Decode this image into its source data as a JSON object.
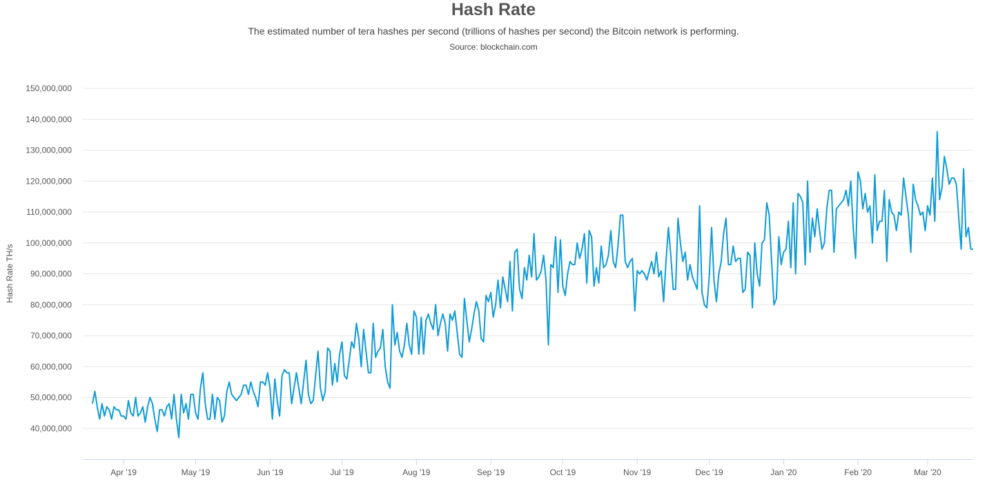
{
  "chart_data": {
    "type": "line",
    "title": "Hash Rate",
    "subtitle": "The estimated number of tera hashes per second (trillions of hashes per second) the Bitcoin network is performing.",
    "source": "Source: blockchain.com",
    "ylabel": "Hash Rate TH/s",
    "xlabel": "",
    "line_color": "#0f9bd7",
    "grid_color": "#e6e6e6",
    "ylim": [
      30000000,
      150000000
    ],
    "y_ticks": [
      40000000,
      50000000,
      60000000,
      70000000,
      80000000,
      90000000,
      100000000,
      110000000,
      120000000,
      130000000,
      140000000,
      150000000
    ],
    "y_tick_labels": [
      "40,000,000",
      "50,000,000",
      "60,000,000",
      "70,000,000",
      "80,000,000",
      "90,000,000",
      "100,000,000",
      "110,000,000",
      "120,000,000",
      "130,000,000",
      "140,000,000",
      "150,000,000"
    ],
    "xlim": [
      "2019-03-15",
      "2020-03-20"
    ],
    "x_ticks": [
      "2019-04-01",
      "2019-05-01",
      "2019-06-01",
      "2019-07-01",
      "2019-08-01",
      "2019-09-01",
      "2019-10-01",
      "2019-11-01",
      "2019-12-01",
      "2020-01-01",
      "2020-02-01",
      "2020-03-01"
    ],
    "x_tick_labels": [
      "Apr '19",
      "May '19",
      "Jun '19",
      "Jul '19",
      "Aug '19",
      "Sep '19",
      "Oct '19",
      "Nov '19",
      "Dec '19",
      "Jan '20",
      "Feb '20",
      "Mar '20"
    ],
    "grid": true,
    "legend": "none",
    "series": [
      {
        "start_date": "2019-03-19",
        "values": [
          48,
          52,
          47,
          43,
          48,
          44,
          47,
          46,
          43,
          47,
          46,
          46,
          44,
          44,
          43,
          49,
          45,
          44,
          50,
          44,
          45,
          47,
          42,
          47,
          50,
          48,
          43,
          39,
          46,
          46,
          44,
          47,
          48,
          43,
          51,
          43,
          37,
          51,
          45,
          48,
          43,
          51,
          51,
          45,
          43,
          53,
          58,
          48,
          43,
          43,
          51,
          43,
          50,
          49,
          42,
          44,
          52,
          55,
          51,
          50,
          49,
          50,
          51,
          54,
          54,
          51,
          55,
          52,
          50,
          47,
          55,
          55,
          54,
          58,
          53,
          43,
          56,
          49,
          44,
          57,
          59,
          58,
          58,
          48,
          53,
          58,
          53,
          48,
          55,
          62,
          51,
          48,
          49,
          57,
          65,
          53,
          49,
          52,
          66,
          65,
          54,
          61,
          55,
          64,
          68,
          57,
          56,
          62,
          68,
          66,
          74,
          69,
          60,
          72,
          65,
          58,
          58,
          74,
          63,
          65,
          66,
          72,
          60,
          55,
          53,
          80,
          67,
          71,
          65,
          63,
          67,
          74,
          67,
          64,
          78,
          76,
          64,
          76,
          64,
          75,
          77,
          74,
          72,
          80,
          70,
          74,
          77,
          74,
          65,
          77,
          75,
          78,
          71,
          64,
          63,
          82,
          75,
          68,
          72,
          77,
          81,
          78,
          69,
          68,
          83,
          81,
          84,
          76,
          80,
          88,
          79,
          89,
          85,
          81,
          94,
          78,
          97,
          98,
          85,
          82,
          92,
          88,
          96,
          89,
          103,
          88,
          89,
          91,
          96,
          88,
          67,
          93,
          92,
          102,
          84,
          101,
          86,
          83,
          90,
          94,
          93,
          93,
          100,
          95,
          98,
          103,
          87,
          104,
          102,
          86,
          92,
          87,
          99,
          92,
          93,
          96,
          104,
          94,
          92,
          99,
          109,
          109,
          94,
          92,
          94,
          95,
          78,
          91,
          90,
          91,
          90,
          88,
          91,
          94,
          90,
          97,
          89,
          91,
          81,
          94,
          105,
          96,
          85,
          85,
          108,
          100,
          94,
          97,
          88,
          93,
          89,
          87,
          85,
          112,
          84,
          80,
          79,
          89,
          105,
          88,
          81,
          90,
          94,
          103,
          108,
          93,
          93,
          99,
          94,
          95,
          95,
          84,
          85,
          97,
          96,
          79,
          100,
          90,
          86,
          100,
          101,
          113,
          109,
          94,
          80,
          82,
          102,
          93,
          97,
          98,
          107,
          92,
          113,
          90,
          116,
          115,
          113,
          93,
          120,
          97,
          108,
          102,
          111,
          104,
          98,
          100,
          111,
          117,
          117,
          97,
          111,
          112,
          113,
          114,
          117,
          112,
          120,
          105,
          95,
          123,
          120,
          111,
          116,
          110,
          112,
          100,
          122,
          104,
          107,
          107,
          117,
          94,
          114,
          110,
          109,
          104,
          110,
          109,
          121,
          115,
          109,
          97,
          119,
          114,
          112,
          109,
          110,
          104,
          112,
          109,
          121,
          107,
          136,
          114,
          118,
          128,
          124,
          119,
          121,
          121,
          119,
          108,
          98,
          124,
          102,
          105,
          98,
          98
        ]
      }
    ]
  }
}
